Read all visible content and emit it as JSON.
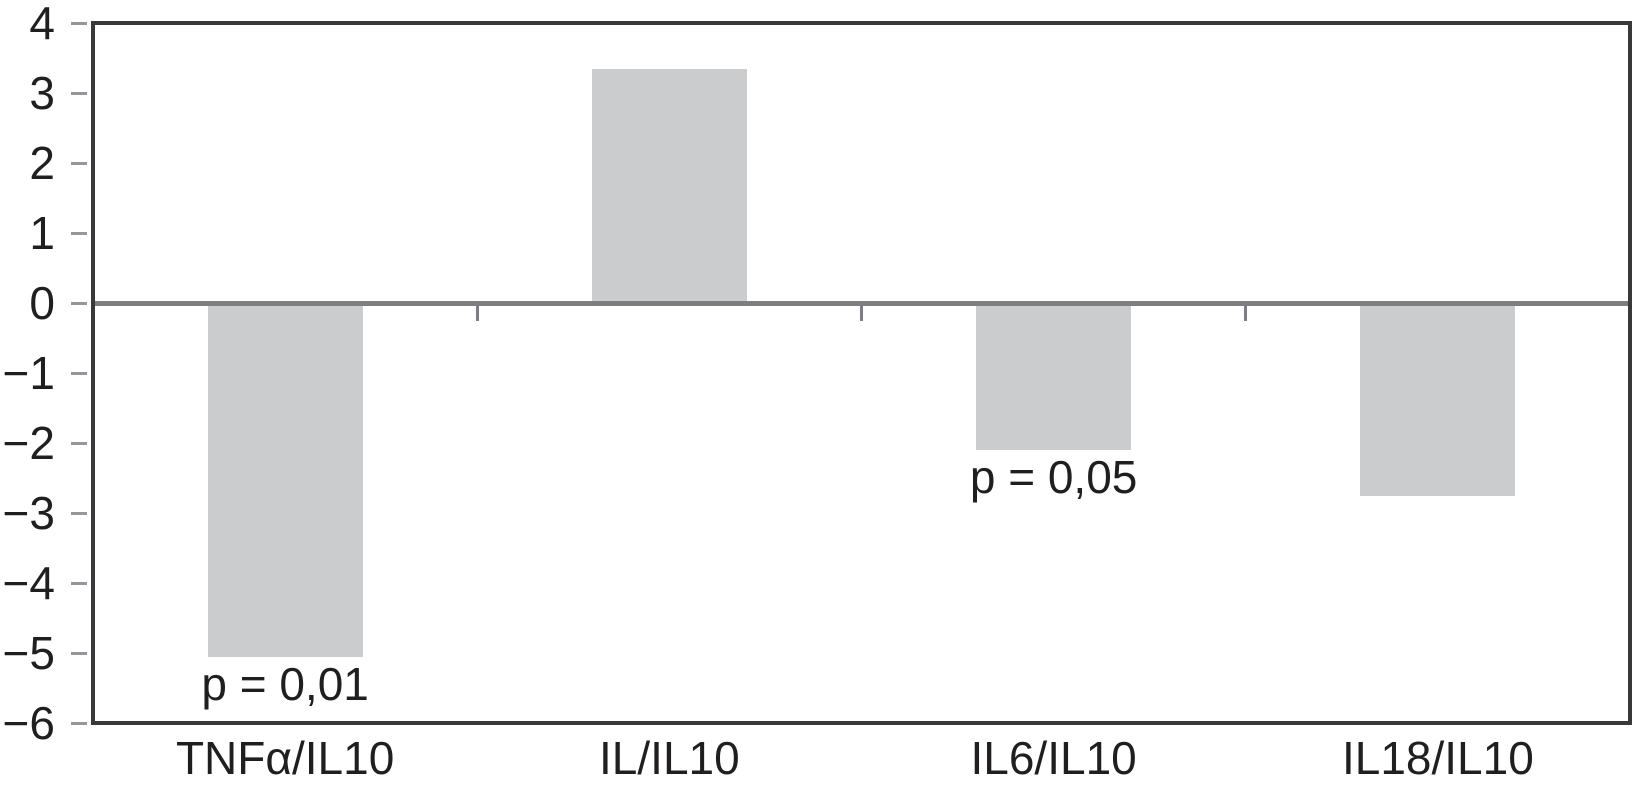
{
  "chart_data": {
    "type": "bar",
    "title": "",
    "xlabel": "",
    "ylabel": "",
    "categories": [
      "TNFα/IL10",
      "IL/IL10",
      "IL6/IL10",
      "IL18/IL10"
    ],
    "values": [
      -5.05,
      3.35,
      -2.1,
      -2.75
    ],
    "annotations": [
      {
        "category_index": 0,
        "text": "p = 0,01"
      },
      {
        "category_index": 2,
        "text": "p = 0,05"
      }
    ],
    "ylim": [
      -6,
      4
    ],
    "yticks": [
      4,
      3,
      2,
      1,
      0,
      -1,
      -2,
      -3,
      -4,
      -5,
      -6
    ],
    "grid": false,
    "legend": "none",
    "colors": {
      "bar_fill": "#cbccce",
      "zero_line": "#7d7e81",
      "frame": "#39393b",
      "axis_tick": "#949699",
      "text": "#211e1f",
      "background": "#ffffff"
    }
  }
}
